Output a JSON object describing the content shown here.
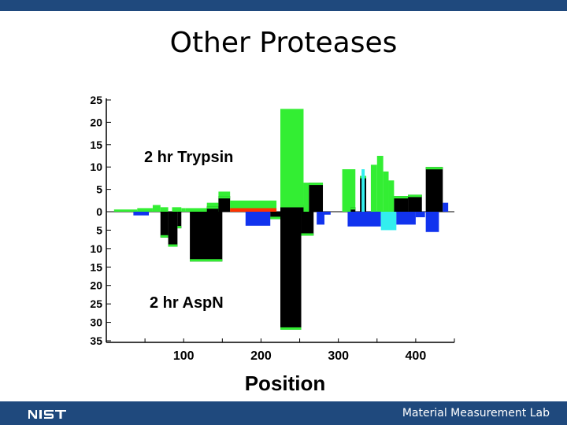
{
  "slide": {
    "title": "Other Proteases",
    "footer_text": "Material Measurement Lab",
    "logo_text": "NIST"
  },
  "colors": {
    "brand_bar": "#1f497d",
    "trypsin": "#33ee33",
    "aspn": "#33ee33",
    "black": "#000000",
    "blue": "#1133ee",
    "cyan": "#33eeee",
    "red": "#ff3300"
  },
  "chart_data": {
    "type": "bar",
    "xlabel": "Position",
    "ylabel": "",
    "x_ticks": [
      100,
      200,
      300,
      400
    ],
    "top_ticks": [
      0,
      5,
      10,
      15,
      20,
      25
    ],
    "bottom_ticks": [
      5,
      10,
      15,
      20,
      25,
      30,
      35
    ],
    "xlim": [
      0,
      450
    ],
    "ylim_top": [
      0,
      25
    ],
    "ylim_bottom": [
      0,
      35
    ],
    "annotations": [
      "2 hr Trypsin",
      "2 hr AspN"
    ],
    "series": [
      {
        "name": "2 hr Trypsin",
        "segments": [
          {
            "x0": 10,
            "x1": 40,
            "y": 0.5,
            "color": "green"
          },
          {
            "x0": 40,
            "x1": 60,
            "y": 0.8,
            "color": "green"
          },
          {
            "x0": 60,
            "x1": 70,
            "y": 1.5,
            "color": "green"
          },
          {
            "x0": 70,
            "x1": 80,
            "y": 1.0,
            "color": "green"
          },
          {
            "x0": 85,
            "x1": 97,
            "y": 1.0,
            "color": "green"
          },
          {
            "x0": 97,
            "x1": 102,
            "y": 0.8,
            "color": "green"
          },
          {
            "x0": 102,
            "x1": 130,
            "y": 0.8,
            "color": "green"
          },
          {
            "x0": 130,
            "x1": 145,
            "y": 2.0,
            "color": "green"
          },
          {
            "x0": 130,
            "x1": 145,
            "y": 1.2,
            "color": "black"
          },
          {
            "x0": 145,
            "x1": 160,
            "y": 4.5,
            "color": "green"
          },
          {
            "x0": 145,
            "x1": 160,
            "y": 3.5,
            "color": "black"
          },
          {
            "x0": 160,
            "x1": 220,
            "y": 2.5,
            "color": "green"
          },
          {
            "x0": 160,
            "x1": 220,
            "y": 0.8,
            "color": "red"
          },
          {
            "x0": 225,
            "x1": 255,
            "y": 23,
            "color": "green"
          },
          {
            "x0": 225,
            "x1": 255,
            "y": 1.5,
            "color": "black"
          },
          {
            "x0": 255,
            "x1": 262,
            "y": 6.5,
            "color": "green"
          },
          {
            "x0": 262,
            "x1": 280,
            "y": 6.5,
            "color": "black"
          },
          {
            "x0": 305,
            "x1": 322,
            "y": 9.5,
            "color": "green"
          },
          {
            "x0": 316,
            "x1": 322,
            "y": 1.0,
            "color": "black"
          },
          {
            "x0": 328,
            "x1": 336,
            "y": 8.0,
            "color": "black"
          },
          {
            "x0": 330,
            "x1": 334,
            "y": 9.5,
            "color": "cyan"
          },
          {
            "x0": 342,
            "x1": 350,
            "y": 10.5,
            "color": "green"
          },
          {
            "x0": 350,
            "x1": 358,
            "y": 12.5,
            "color": "green"
          },
          {
            "x0": 358,
            "x1": 365,
            "y": 9.0,
            "color": "green"
          },
          {
            "x0": 365,
            "x1": 372,
            "y": 7.0,
            "color": "green"
          },
          {
            "x0": 372,
            "x1": 390,
            "y": 3.5,
            "color": "black"
          },
          {
            "x0": 390,
            "x1": 408,
            "y": 3.8,
            "color": "black"
          },
          {
            "x0": 413,
            "x1": 435,
            "y": 10.0,
            "color": "black"
          },
          {
            "x0": 435,
            "x1": 442,
            "y": 2.0,
            "color": "blue"
          }
        ]
      },
      {
        "name": "2 hr AspN",
        "segments": [
          {
            "x0": 35,
            "x1": 55,
            "y": 1.0,
            "color": "blue"
          },
          {
            "x0": 70,
            "x1": 80,
            "y": 7.0,
            "color": "black"
          },
          {
            "x0": 80,
            "x1": 92,
            "y": 9.5,
            "color": "black"
          },
          {
            "x0": 92,
            "x1": 97,
            "y": 4.5,
            "color": "black"
          },
          {
            "x0": 108,
            "x1": 150,
            "y": 13.5,
            "color": "black"
          },
          {
            "x0": 180,
            "x1": 212,
            "y": 3.8,
            "color": "blue"
          },
          {
            "x0": 212,
            "x1": 225,
            "y": 2.0,
            "color": "black"
          },
          {
            "x0": 225,
            "x1": 252,
            "y": 32.0,
            "color": "black"
          },
          {
            "x0": 252,
            "x1": 268,
            "y": 6.5,
            "color": "black"
          },
          {
            "x0": 272,
            "x1": 282,
            "y": 3.5,
            "color": "blue"
          },
          {
            "x0": 282,
            "x1": 290,
            "y": 0.8,
            "color": "blue"
          },
          {
            "x0": 312,
            "x1": 355,
            "y": 4.0,
            "color": "blue"
          },
          {
            "x0": 355,
            "x1": 375,
            "y": 5.0,
            "color": "cyan"
          },
          {
            "x0": 375,
            "x1": 400,
            "y": 3.5,
            "color": "blue"
          },
          {
            "x0": 400,
            "x1": 412,
            "y": 1.5,
            "color": "blue"
          },
          {
            "x0": 413,
            "x1": 430,
            "y": 5.5,
            "color": "blue"
          }
        ]
      }
    ]
  }
}
